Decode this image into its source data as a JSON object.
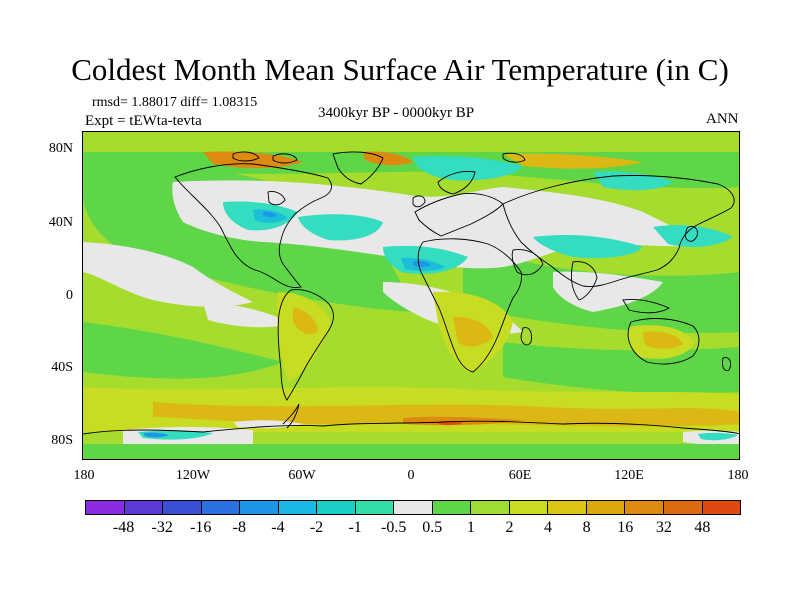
{
  "title": "Coldest Month Mean Surface Air Temperature (in C)",
  "stats": "rmsd= 1.88017 diff= 1.08315",
  "experiment": "Expt = tEWta-tevta",
  "period": "3400kyr BP - 0000kyr BP",
  "season": "ANN",
  "lat_axis": [
    {
      "label": "80N",
      "value": 80
    },
    {
      "label": "40N",
      "value": 40
    },
    {
      "label": "0",
      "value": 0
    },
    {
      "label": "40S",
      "value": -40
    },
    {
      "label": "80S",
      "value": -80
    }
  ],
  "lon_axis": [
    {
      "label": "180",
      "value": -180
    },
    {
      "label": "120W",
      "value": -120
    },
    {
      "label": "60W",
      "value": -60
    },
    {
      "label": "0",
      "value": 0
    },
    {
      "label": "60E",
      "value": 60
    },
    {
      "label": "120E",
      "value": 120
    },
    {
      "label": "180",
      "value": 180
    }
  ],
  "colorbar": {
    "colors": [
      "#8a2be2",
      "#5b3ad8",
      "#3a4fd6",
      "#2a72e0",
      "#1f95e8",
      "#1bb8e6",
      "#1ccfc5",
      "#34dca8",
      "#e8e8e8",
      "#5ed647",
      "#9fdd33",
      "#c9dc22",
      "#dcc414",
      "#dca812",
      "#dc8a10",
      "#dc6a10",
      "#dc4a10"
    ],
    "labels": [
      "-48",
      "-32",
      "-16",
      "-8",
      "-4",
      "-2",
      "-1",
      "-0.5",
      "0.5",
      "1",
      "2",
      "4",
      "8",
      "16",
      "32",
      "48"
    ]
  },
  "map_colors": {
    "ocean": "#a6dc2e",
    "green": "#5ed647",
    "white": "#e8e8e8",
    "cyan": "#34dcc0",
    "teal": "#1bbfd8",
    "blue": "#1f95e8",
    "yellow": "#c8dc22",
    "orange": "#dcb814",
    "dark_orange": "#dc8a10",
    "red": "#dc5010",
    "coast": "#000000"
  }
}
